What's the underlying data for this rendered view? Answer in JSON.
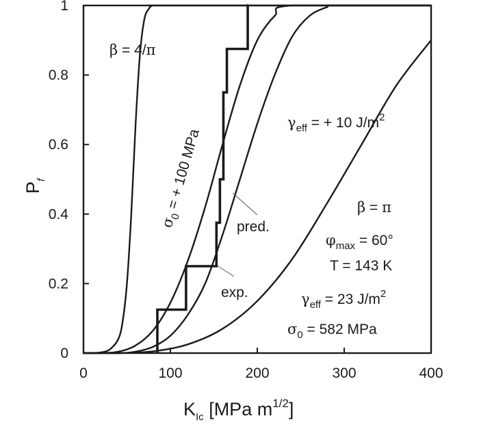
{
  "chart_data": {
    "type": "line",
    "xlabel": {
      "main": "K",
      "sub": "Ic",
      "rest": " [MPa m",
      "sup": "1/2",
      "end": "]"
    },
    "ylabel": {
      "main": "P",
      "sub": "f"
    },
    "xlim": [
      0,
      400
    ],
    "ylim": [
      0,
      1
    ],
    "xticks": [
      0,
      100,
      200,
      300,
      400
    ],
    "xtick_labels": [
      "0",
      "100",
      "200",
      "300",
      "400"
    ],
    "yticks": [
      0,
      0.2,
      0.4,
      0.6,
      0.8,
      1
    ],
    "ytick_labels": [
      "0",
      "0.2",
      "0.4",
      "0.6",
      "0.8",
      "1"
    ],
    "grid": false,
    "series": [
      {
        "id": "beta-4-over-pi",
        "x": [
          0,
          10,
          20,
          30,
          40,
          45,
          50,
          55,
          60,
          65,
          70,
          75,
          80,
          90,
          100,
          400
        ],
        "y": [
          0,
          0,
          0.002,
          0.01,
          0.04,
          0.09,
          0.2,
          0.4,
          0.66,
          0.86,
          0.96,
          0.99,
          1,
          1,
          1,
          1
        ]
      },
      {
        "id": "sigma0-plus-100",
        "x": [
          0,
          20,
          40,
          60,
          80,
          100,
          120,
          140,
          160,
          180,
          200,
          220,
          240,
          400
        ],
        "y": [
          0,
          0,
          0.004,
          0.022,
          0.065,
          0.145,
          0.265,
          0.42,
          0.6,
          0.77,
          0.9,
          0.97,
          1,
          1
        ]
      },
      {
        "id": "predicted",
        "x": [
          0,
          40,
          60,
          80,
          100,
          120,
          140,
          160,
          180,
          200,
          220,
          240,
          260,
          280,
          290,
          400
        ],
        "y": [
          0,
          0,
          0.004,
          0.018,
          0.05,
          0.11,
          0.2,
          0.34,
          0.5,
          0.66,
          0.8,
          0.91,
          0.97,
          0.995,
          1,
          1
        ]
      },
      {
        "id": "gamma-eff-plus-10",
        "x": [
          0,
          40,
          80,
          120,
          160,
          200,
          240,
          280,
          320,
          360,
          400
        ],
        "y": [
          0,
          0,
          0.005,
          0.025,
          0.07,
          0.15,
          0.27,
          0.43,
          0.6,
          0.77,
          0.9
        ]
      },
      {
        "id": "experimental",
        "type": "step",
        "x": [
          85,
          85,
          118,
          118,
          153,
          153,
          157,
          157,
          161,
          161,
          165,
          165,
          189,
          189,
          190
        ],
        "y": [
          0,
          0.125,
          0.125,
          0.25,
          0.25,
          0.375,
          0.375,
          0.5,
          0.5,
          0.75,
          0.75,
          0.875,
          0.875,
          1,
          1
        ]
      }
    ],
    "annotations": {
      "beta_curve": {
        "greek": "β",
        "text": " = 4/",
        "greek2": "π"
      },
      "sigma_curve": {
        "greek": "σ",
        "sub": "0",
        "text": " = + 100 MPa"
      },
      "gamma_curve": {
        "greek": "γ",
        "sub": "eff",
        "text": " = + 10 J/m",
        "sup": "2"
      },
      "pred_label": "pred.",
      "exp_label": "exp.",
      "params": {
        "beta": {
          "greek": "β",
          "text": " = ",
          "greek2": "π"
        },
        "phi": {
          "greek": "φ",
          "sub": "max",
          "text": " = 60°"
        },
        "temp": "T = 143 K",
        "gamma": {
          "greek": "γ",
          "sub": "eff",
          "text": " = 23 J/m",
          "sup": "2"
        },
        "sigma": {
          "greek": "σ",
          "sub": "0",
          "text": " = 582 MPa"
        }
      }
    }
  }
}
